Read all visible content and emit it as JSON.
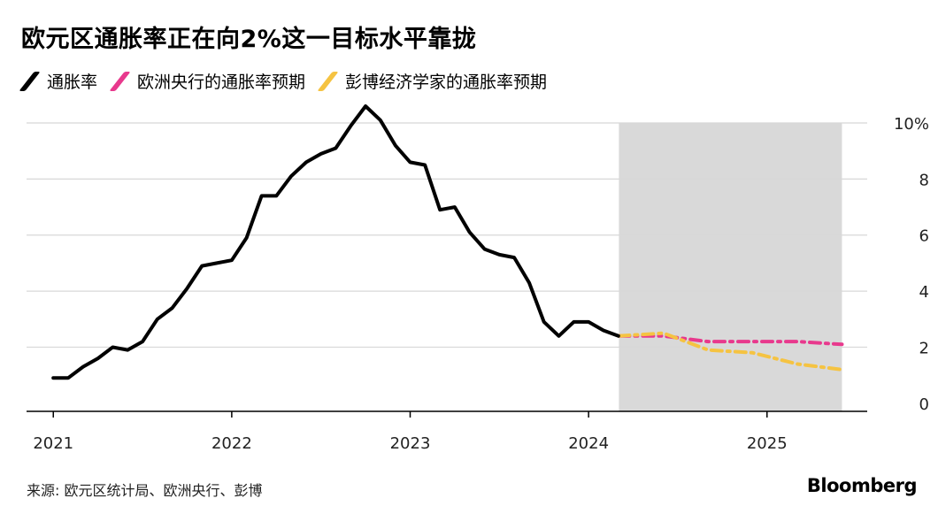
{
  "title": "欧元区通胀率正在向2%这一目标水平靠拢",
  "legend": [
    {
      "label": "通胀率",
      "color": "#000000"
    },
    {
      "label": "欧洲央行的通胀率预期",
      "color": "#e8398d"
    },
    {
      "label": "彭博经济学家的通胀率预期",
      "color": "#f5c342"
    }
  ],
  "source": "来源: 欧元区统计局、欧洲央行、彭博",
  "brand": "Bloomberg",
  "chart_data": {
    "type": "line",
    "title": "欧元区通胀率正在向2%这一目标水平靠拢",
    "y_ticks": [
      {
        "value": 0,
        "label": "0"
      },
      {
        "value": 2,
        "label": "2"
      },
      {
        "value": 4,
        "label": "4"
      },
      {
        "value": 6,
        "label": "6"
      },
      {
        "value": 8,
        "label": "8"
      },
      {
        "value": 10,
        "label": "10%"
      }
    ],
    "x_ticks": [
      {
        "value": 2021,
        "label": "2021"
      },
      {
        "value": 2022,
        "label": "2022"
      },
      {
        "value": 2023,
        "label": "2023"
      },
      {
        "value": 2024,
        "label": "2024"
      },
      {
        "value": 2025,
        "label": "2025"
      }
    ],
    "xlim": [
      2020.85,
      2025.75
    ],
    "ylim": [
      -0.7,
      10.6
    ],
    "forecast_shade": {
      "x_start": 2024.17,
      "x_end": 2025.42,
      "color": "#d9d9d9"
    },
    "series": [
      {
        "name": "通胀率",
        "color": "#000000",
        "dash": "",
        "x": [
          2021.0,
          2021.083,
          2021.167,
          2021.25,
          2021.333,
          2021.417,
          2021.5,
          2021.583,
          2021.667,
          2021.75,
          2021.833,
          2021.917,
          2022.0,
          2022.083,
          2022.167,
          2022.25,
          2022.333,
          2022.417,
          2022.5,
          2022.583,
          2022.667,
          2022.75,
          2022.833,
          2022.917,
          2023.0,
          2023.083,
          2023.167,
          2023.25,
          2023.333,
          2023.417,
          2023.5,
          2023.583,
          2023.667,
          2023.75,
          2023.833,
          2023.917,
          2024.0,
          2024.083,
          2024.167
        ],
        "y": [
          0.9,
          0.9,
          1.3,
          1.6,
          2.0,
          1.9,
          2.2,
          3.0,
          3.4,
          4.1,
          4.9,
          5.0,
          5.1,
          5.9,
          7.4,
          7.4,
          8.1,
          8.6,
          8.9,
          9.1,
          9.9,
          10.6,
          10.1,
          9.2,
          8.6,
          8.5,
          6.9,
          7.0,
          6.1,
          5.5,
          5.3,
          5.2,
          4.3,
          2.9,
          2.4,
          2.9,
          2.9,
          2.6,
          2.4
        ]
      },
      {
        "name": "欧洲央行的通胀率预期",
        "color": "#e8398d",
        "dash": "12 6 3 6",
        "x": [
          2024.17,
          2024.42,
          2024.67,
          2024.92,
          2025.17,
          2025.42
        ],
        "y": [
          2.4,
          2.4,
          2.2,
          2.2,
          2.2,
          2.1
        ]
      },
      {
        "name": "彭博经济学家的通胀率预期",
        "color": "#f5c342",
        "dash": "12 6 3 6",
        "x": [
          2024.17,
          2024.42,
          2024.67,
          2024.92,
          2025.17,
          2025.42
        ],
        "y": [
          2.4,
          2.5,
          1.9,
          1.8,
          1.4,
          1.2
        ]
      }
    ]
  }
}
